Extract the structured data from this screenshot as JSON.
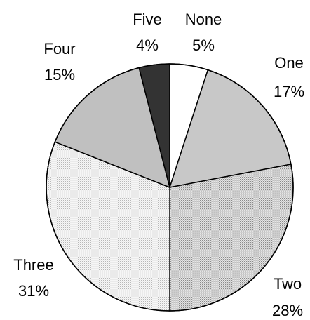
{
  "chart_data": {
    "type": "pie",
    "title": "",
    "start_angle_deg": 0,
    "direction": "clockwise",
    "slices": [
      {
        "label": "None",
        "value": 5,
        "value_label": "5%",
        "fill": "#ffffff",
        "pattern": "none"
      },
      {
        "label": "One",
        "value": 17,
        "value_label": "17%",
        "fill": "#c8c8c8",
        "pattern": "none"
      },
      {
        "label": "Two",
        "value": 28,
        "value_label": "28%",
        "fill": "#d6d6d6",
        "pattern": "dots-dense"
      },
      {
        "label": "Three",
        "value": 31,
        "value_label": "31%",
        "fill": "#f0f0f0",
        "pattern": "dots-light"
      },
      {
        "label": "Four",
        "value": 15,
        "value_label": "15%",
        "fill": "#c0c0c0",
        "pattern": "none"
      },
      {
        "label": "Five",
        "value": 4,
        "value_label": "4%",
        "fill": "#333333",
        "pattern": "none"
      }
    ],
    "legend": "none",
    "label_position": "outside"
  }
}
